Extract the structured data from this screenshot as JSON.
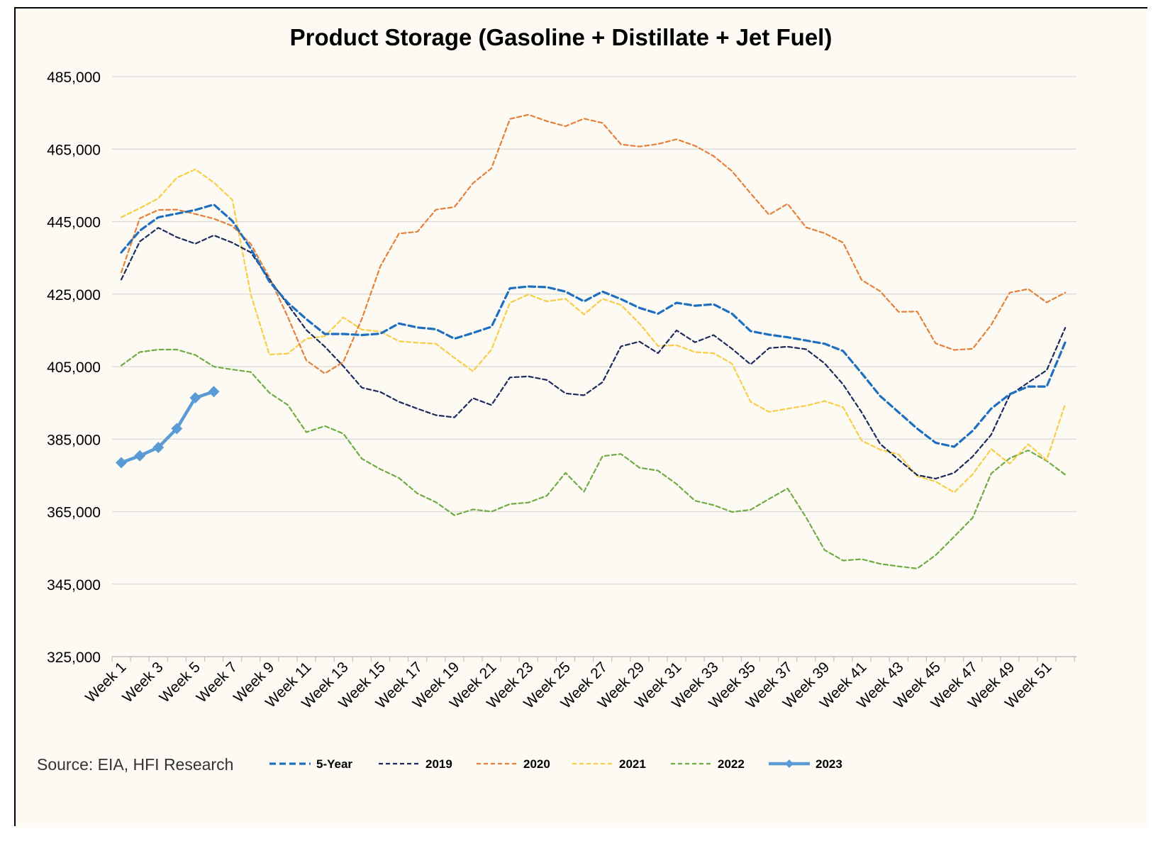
{
  "chart_data": {
    "type": "line",
    "title": "Product Storage (Gasoline + Distillate + Jet Fuel)",
    "source": "Source: EIA, HFI Research",
    "xlabel": "",
    "ylabel": "",
    "ylim": [
      325000,
      485000
    ],
    "yticks": [
      325000,
      345000,
      365000,
      385000,
      405000,
      425000,
      445000,
      465000,
      485000
    ],
    "ytick_labels": [
      "325,000",
      "345,000",
      "365,000",
      "385,000",
      "405,000",
      "425,000",
      "445,000",
      "465,000",
      "485,000"
    ],
    "x_tick_labels": [
      "Week 1",
      "Week 3",
      "Week 5",
      "Week 7",
      "Week 9",
      "Week 11",
      "Week 13",
      "Week 15",
      "Week 17",
      "Week 19",
      "Week 21",
      "Week 23",
      "Week 25",
      "Week 27",
      "Week 29",
      "Week 31",
      "Week 33",
      "Week 35",
      "Week 37",
      "Week 39",
      "Week 41",
      "Week 43",
      "Week 45",
      "Week 47",
      "Week 49",
      "Week 51"
    ],
    "x_range": [
      1,
      52
    ],
    "grid": "horizontal",
    "legend_position": "bottom",
    "series": [
      {
        "name": "5-Year",
        "color": "#1f6fc1",
        "style": "dashed-thick",
        "x": [
          1,
          2,
          3,
          4,
          5,
          6,
          7,
          8,
          9,
          10,
          11,
          12,
          13,
          14,
          15,
          16,
          17,
          18,
          19,
          20,
          21,
          22,
          23,
          24,
          25,
          26,
          27,
          28,
          29,
          30,
          31,
          32,
          33,
          34,
          35,
          36,
          37,
          38,
          39,
          40,
          41,
          42,
          43,
          44,
          45,
          46,
          47,
          48,
          49,
          50,
          51,
          52
        ],
        "values": [
          436500,
          442500,
          446200,
          447200,
          448200,
          449700,
          445200,
          437500,
          428500,
          422600,
          418100,
          414000,
          414000,
          413700,
          414100,
          416900,
          415800,
          415300,
          412700,
          414300,
          416000,
          426600,
          427100,
          426900,
          425700,
          423000,
          425700,
          423600,
          421200,
          419600,
          422600,
          421800,
          422200,
          419600,
          414800,
          413800,
          413100,
          412200,
          411300,
          409300,
          403200,
          396900,
          392400,
          387900,
          384000,
          382900,
          387300,
          393400,
          397400,
          399500,
          399500,
          411700
        ]
      },
      {
        "name": "2019",
        "color": "#1c2a5e",
        "style": "dashed",
        "x": [
          1,
          2,
          3,
          4,
          5,
          6,
          7,
          8,
          9,
          10,
          11,
          12,
          13,
          14,
          15,
          16,
          17,
          18,
          19,
          20,
          21,
          22,
          23,
          24,
          25,
          26,
          27,
          28,
          29,
          30,
          31,
          32,
          33,
          34,
          35,
          36,
          37,
          38,
          39,
          40,
          41,
          42,
          43,
          44,
          45,
          46,
          47,
          48,
          49,
          50,
          51,
          52
        ],
        "values": [
          429000,
          439500,
          443300,
          440700,
          438900,
          441200,
          439200,
          436500,
          429100,
          422100,
          415100,
          410500,
          405100,
          399200,
          398000,
          395300,
          393400,
          391600,
          391000,
          396300,
          394400,
          402000,
          402300,
          401300,
          397600,
          397100,
          400700,
          410600,
          411900,
          408700,
          415000,
          411700,
          413700,
          409900,
          405600,
          410100,
          410500,
          409800,
          405900,
          400100,
          392400,
          383700,
          379300,
          375100,
          374100,
          375700,
          380200,
          386200,
          397100,
          400600,
          404000,
          415700
        ]
      },
      {
        "name": "2020",
        "color": "#e5803a",
        "style": "dashed",
        "x": [
          1,
          2,
          3,
          4,
          5,
          6,
          7,
          8,
          9,
          10,
          11,
          12,
          13,
          14,
          15,
          16,
          17,
          18,
          19,
          20,
          21,
          22,
          23,
          24,
          25,
          26,
          27,
          28,
          29,
          30,
          31,
          32,
          33,
          34,
          35,
          36,
          37,
          38,
          39,
          40,
          41,
          42,
          43,
          44,
          45,
          46,
          47,
          48,
          49,
          50,
          51,
          52
        ],
        "values": [
          431000,
          445900,
          448200,
          448300,
          447100,
          445800,
          443800,
          438800,
          429600,
          418700,
          406700,
          403100,
          406300,
          418200,
          432700,
          441700,
          442200,
          448300,
          449000,
          455600,
          459700,
          473300,
          474500,
          472700,
          471300,
          473400,
          472200,
          466300,
          465700,
          466400,
          467700,
          465900,
          463100,
          458900,
          452800,
          446900,
          449900,
          443400,
          441800,
          439200,
          428900,
          425800,
          420100,
          420200,
          411400,
          409600,
          409900,
          416500,
          425400,
          426400,
          422700,
          425400
        ]
      },
      {
        "name": "2021",
        "color": "#f9cd46",
        "style": "dashed",
        "x": [
          1,
          2,
          3,
          4,
          5,
          6,
          7,
          8,
          9,
          10,
          11,
          12,
          13,
          14,
          15,
          16,
          17,
          18,
          19,
          20,
          21,
          22,
          23,
          24,
          25,
          26,
          27,
          28,
          29,
          30,
          31,
          32,
          33,
          34,
          35,
          36,
          37,
          38,
          39,
          40,
          41,
          42,
          43,
          44,
          45,
          46,
          47,
          48,
          49,
          50,
          51,
          52
        ],
        "values": [
          446200,
          448700,
          451400,
          457100,
          459400,
          455800,
          451000,
          424900,
          408300,
          408600,
          412700,
          413400,
          418600,
          415200,
          414700,
          412000,
          411600,
          411300,
          407400,
          403700,
          409700,
          422600,
          424900,
          423000,
          423700,
          419400,
          423700,
          422000,
          416900,
          410700,
          410900,
          409000,
          408700,
          405800,
          395300,
          392500,
          393400,
          394200,
          395500,
          393800,
          384600,
          382100,
          380800,
          374800,
          373300,
          370300,
          375300,
          382300,
          378200,
          383600,
          379200,
          394700
        ]
      },
      {
        "name": "2022",
        "color": "#70ab46",
        "style": "dashed",
        "x": [
          1,
          2,
          3,
          4,
          5,
          6,
          7,
          8,
          9,
          10,
          11,
          12,
          13,
          14,
          15,
          16,
          17,
          18,
          19,
          20,
          21,
          22,
          23,
          24,
          25,
          26,
          27,
          28,
          29,
          30,
          31,
          32,
          33,
          34,
          35,
          36,
          37,
          38,
          39,
          40,
          41,
          42,
          43,
          44,
          45,
          46,
          47,
          48,
          49,
          50,
          51,
          52
        ],
        "values": [
          405300,
          409000,
          409700,
          409700,
          408200,
          405000,
          404200,
          403500,
          397800,
          394400,
          386900,
          388600,
          386500,
          379600,
          376700,
          374300,
          370000,
          367600,
          364000,
          365600,
          365000,
          367100,
          367500,
          369400,
          375700,
          370500,
          380300,
          380900,
          377100,
          376300,
          372600,
          368000,
          366800,
          364900,
          365500,
          368500,
          371400,
          363400,
          354400,
          351500,
          351900,
          350600,
          349900,
          349300,
          353000,
          358100,
          363300,
          375500,
          379700,
          381900,
          379000,
          375200
        ]
      },
      {
        "name": "2023",
        "color": "#5b9bd5",
        "style": "solid-markers",
        "x": [
          1,
          2,
          3,
          4,
          5,
          6
        ],
        "values": [
          378500,
          380400,
          382700,
          387900,
          396400,
          398100
        ]
      }
    ]
  }
}
